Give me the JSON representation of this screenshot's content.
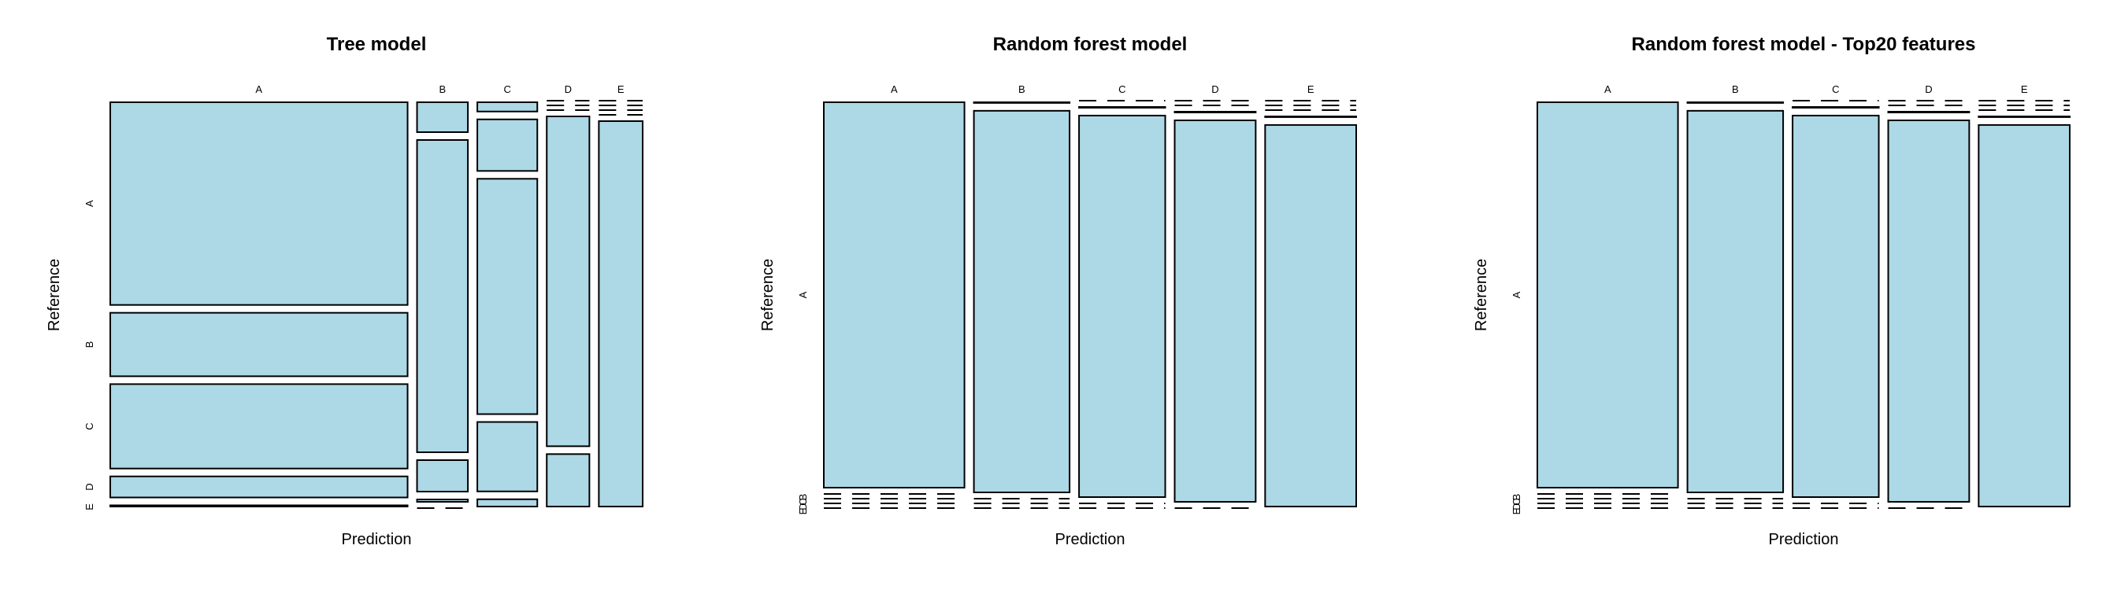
{
  "chart_data": [
    {
      "type": "mosaic",
      "title": "Tree model",
      "xlabel": "Prediction",
      "ylabel": "Reference",
      "colors": {
        "tile": "#add8e6",
        "border": "#000000"
      },
      "prediction_levels": [
        "A",
        "B",
        "C",
        "D",
        "E"
      ],
      "reference_levels": [
        "A",
        "B",
        "C",
        "D",
        "E"
      ],
      "matrix": [
        [
          1520,
          38,
          14,
          0,
          0
        ],
        [
          476,
          397,
          78,
          0,
          0
        ],
        [
          633,
          40,
          356,
          0,
          0
        ],
        [
          158,
          3,
          105,
          346,
          0
        ],
        [
          9,
          0,
          11,
          55,
          412
        ]
      ]
    },
    {
      "type": "mosaic",
      "title": "Random forest model",
      "xlabel": "Prediction",
      "ylabel": "Reference",
      "colors": {
        "tile": "#add8e6",
        "border": "#000000"
      },
      "prediction_levels": [
        "A",
        "B",
        "C",
        "D",
        "E"
      ],
      "reference_levels": [
        "A",
        "B",
        "C",
        "D",
        "E"
      ],
      "matrix": [
        [
          1674,
          2,
          0,
          0,
          0
        ],
        [
          0,
          1137,
          2,
          0,
          0
        ],
        [
          0,
          0,
          1024,
          2,
          0
        ],
        [
          0,
          0,
          0,
          962,
          2
        ],
        [
          0,
          0,
          0,
          0,
          1082
        ]
      ]
    },
    {
      "type": "mosaic",
      "title": "Random forest model - Top20 features",
      "xlabel": "Prediction",
      "ylabel": "Reference",
      "colors": {
        "tile": "#add8e6",
        "border": "#000000"
      },
      "prediction_levels": [
        "A",
        "B",
        "C",
        "D",
        "E"
      ],
      "reference_levels": [
        "A",
        "B",
        "C",
        "D",
        "E"
      ],
      "matrix": [
        [
          1674,
          2,
          0,
          0,
          0
        ],
        [
          0,
          1137,
          2,
          0,
          0
        ],
        [
          0,
          0,
          1024,
          2,
          0
        ],
        [
          0,
          0,
          0,
          962,
          2
        ],
        [
          0,
          0,
          0,
          0,
          1082
        ]
      ]
    }
  ]
}
